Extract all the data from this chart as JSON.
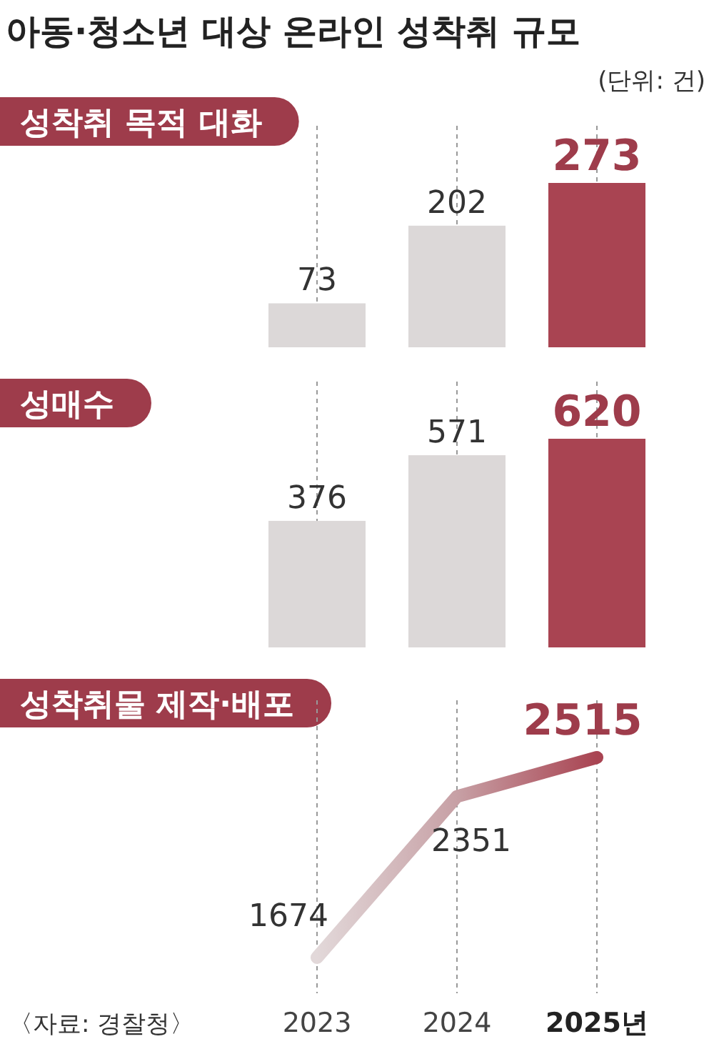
{
  "chart_data": [
    {
      "type": "other",
      "title": "아동·청소년 대상 온라인 성착취 규모",
      "subtitle": "(단위: 건)"
    },
    {
      "type": "bar",
      "title": "성착취 목적 대화",
      "categories": [
        null,
        null,
        null
      ],
      "values": [
        73,
        202,
        273
      ],
      "colors": [
        "#dcd8d8",
        "#dcd8d8",
        "#a94452"
      ],
      "data_labels": true,
      "grid": "x",
      "tick_labels": false
    },
    {
      "type": "bar",
      "title": "성매수",
      "categories": [
        null,
        null,
        null
      ],
      "values": [
        376,
        571,
        620
      ],
      "colors": [
        "#dcd8d8",
        "#dcd8d8",
        "#a94452"
      ],
      "data_labels": true,
      "grid": "x",
      "tick_labels": false
    },
    {
      "type": "line",
      "title": "성착취물 제작·배포",
      "categories": [
        "2023",
        "2024",
        "2025년"
      ],
      "values": [
        1674,
        2351,
        2515
      ],
      "colors": [
        "#e2d8d9",
        "#c7a0a5",
        "#a94452"
      ],
      "data_labels": true,
      "grid": "x",
      "tick_labels": "x",
      "marker": "none",
      "annotations": [
        "〈자료: 경찰청〉"
      ]
    }
  ]
}
